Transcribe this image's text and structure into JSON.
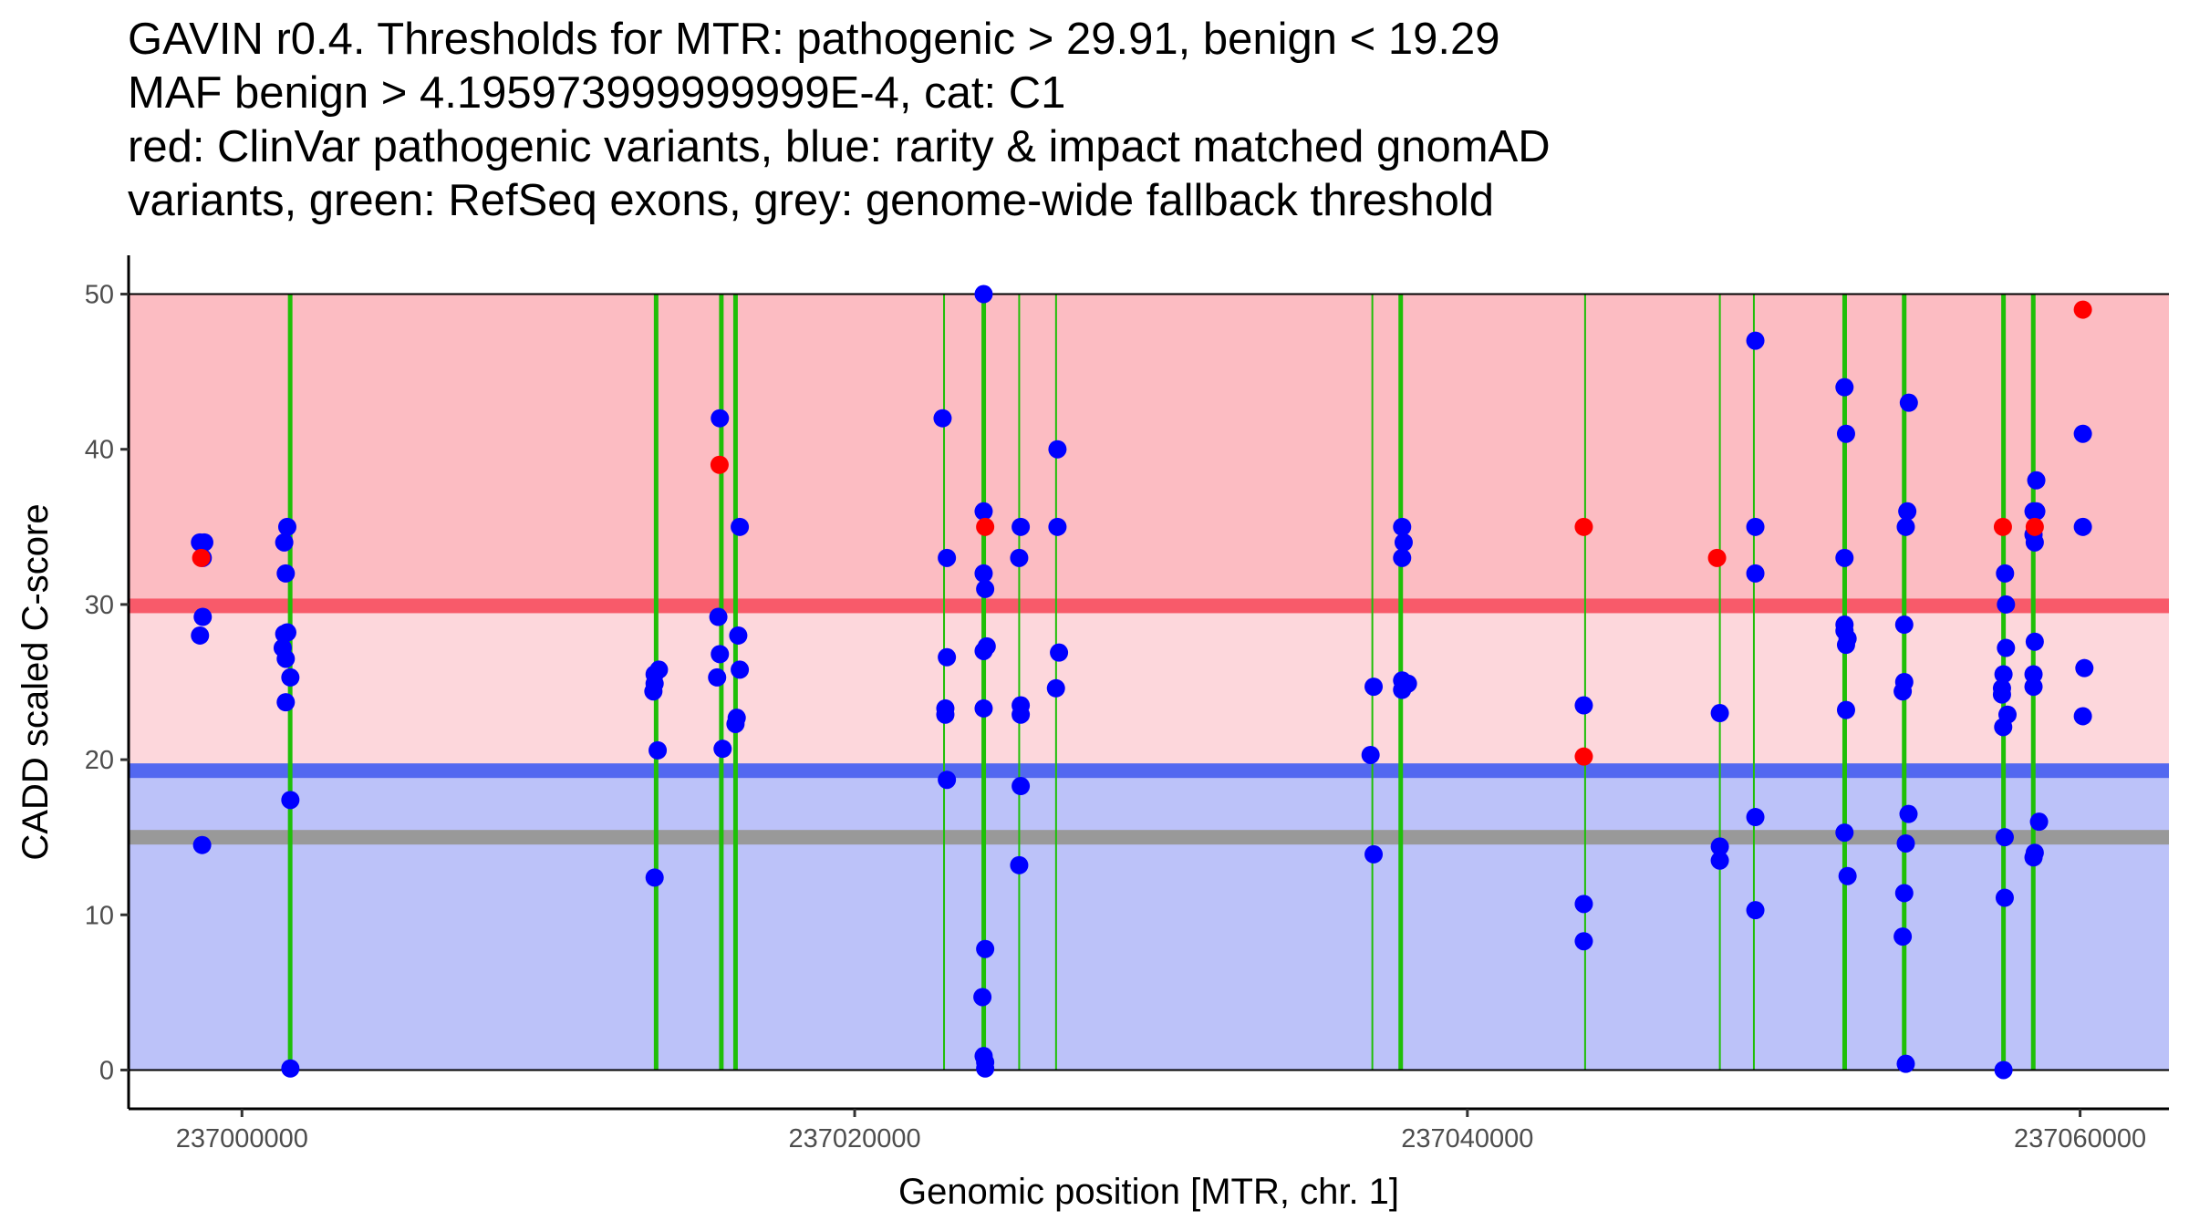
{
  "chart_data": {
    "type": "scatter",
    "title_lines": [
      "GAVIN r0.4. Thresholds for MTR: pathogenic > 29.91, benign < 19.29",
      "MAF benign > 4.195973999999999E-4, cat: C1",
      "red: ClinVar pathogenic variants, blue: rarity & impact matched gnomAD",
      "variants, green: RefSeq exons, grey: genome-wide fallback threshold"
    ],
    "xlabel": "Genomic position [MTR, chr. 1]",
    "ylabel": "CADD scaled C-score",
    "xlim": [
      236996300,
      237062900
    ],
    "ylim": [
      -2.5,
      52.5
    ],
    "x_ticks": [
      237000000,
      237020000,
      237040000,
      237060000
    ],
    "x_tick_labels": [
      "237000000",
      "237020000",
      "237040000",
      "237060000"
    ],
    "y_ticks": [
      0,
      10,
      20,
      30,
      40,
      50
    ],
    "y_tick_labels": [
      "0",
      "10",
      "20",
      "30",
      "40",
      "50"
    ],
    "grid": false,
    "bands": [
      {
        "name": "pathogenic-region",
        "y0": 29.91,
        "y1": 50,
        "color": "#fcbcc2"
      },
      {
        "name": "intermediate-region",
        "y0": 19.29,
        "y1": 29.91,
        "color": "#fdd7dc"
      },
      {
        "name": "benign-region",
        "y0": 0,
        "y1": 19.29,
        "color": "#bcc2f9"
      }
    ],
    "threshold_lines": [
      {
        "name": "pathogenic-threshold",
        "y": 29.91,
        "color": "#f85a6a"
      },
      {
        "name": "benign-threshold",
        "y": 19.29,
        "color": "#5368f0"
      },
      {
        "name": "genome-wide-fallback-threshold",
        "y": 15.0,
        "color": "#999999"
      }
    ],
    "exons": [
      {
        "x": 237001574,
        "thick": true
      },
      {
        "x": 237013519,
        "thick": true
      },
      {
        "x": 237015648,
        "thick": true
      },
      {
        "x": 237016111,
        "thick": true
      },
      {
        "x": 237022917,
        "thick": false
      },
      {
        "x": 237024213,
        "thick": true
      },
      {
        "x": 237025370,
        "thick": false
      },
      {
        "x": 237026574,
        "thick": false
      },
      {
        "x": 237036898,
        "thick": false
      },
      {
        "x": 237037824,
        "thick": true
      },
      {
        "x": 237043843,
        "thick": false
      },
      {
        "x": 237048241,
        "thick": false
      },
      {
        "x": 237049352,
        "thick": false
      },
      {
        "x": 237052315,
        "thick": true
      },
      {
        "x": 237054259,
        "thick": true
      },
      {
        "x": 237057500,
        "thick": true
      },
      {
        "x": 237058472,
        "thick": true
      }
    ],
    "exon_color": "#1fbf08",
    "series": [
      {
        "name": "gnomAD matched variants",
        "color": "#0000ff",
        "points": [
          [
            236998630,
            34
          ],
          [
            236998770,
            34
          ],
          [
            236998720,
            33
          ],
          [
            236998720,
            29.2
          ],
          [
            236998630,
            28
          ],
          [
            236998700,
            14.5
          ],
          [
            237001480,
            35
          ],
          [
            237001380,
            34
          ],
          [
            237001430,
            32
          ],
          [
            237001480,
            28.2
          ],
          [
            237001380,
            28.1
          ],
          [
            237001330,
            27.2
          ],
          [
            237001430,
            26.5
          ],
          [
            237001580,
            25.3
          ],
          [
            237001430,
            23.7
          ],
          [
            237001580,
            17.4
          ],
          [
            237001580,
            0.1
          ],
          [
            237013610,
            25.8
          ],
          [
            237013470,
            25.5
          ],
          [
            237013470,
            24.9
          ],
          [
            237013430,
            24.4
          ],
          [
            237013570,
            20.6
          ],
          [
            237013470,
            12.4
          ],
          [
            237015600,
            42
          ],
          [
            237015550,
            29.2
          ],
          [
            237015600,
            26.8
          ],
          [
            237015510,
            25.3
          ],
          [
            237015690,
            20.7
          ],
          [
            237016250,
            35
          ],
          [
            237016200,
            28
          ],
          [
            237016250,
            25.8
          ],
          [
            237016150,
            22.7
          ],
          [
            237016110,
            22.3
          ],
          [
            237022870,
            42
          ],
          [
            237023010,
            33
          ],
          [
            237023010,
            26.6
          ],
          [
            237022960,
            23.3
          ],
          [
            237022960,
            22.9
          ],
          [
            237023010,
            18.7
          ],
          [
            237024210,
            50
          ],
          [
            237024210,
            36
          ],
          [
            237024210,
            32
          ],
          [
            237024260,
            31
          ],
          [
            237024310,
            27.3
          ],
          [
            237024210,
            27
          ],
          [
            237024210,
            23.3
          ],
          [
            237024260,
            7.8
          ],
          [
            237024170,
            4.7
          ],
          [
            237024210,
            0.9
          ],
          [
            237024260,
            0.5
          ],
          [
            237024260,
            0.1
          ],
          [
            237025420,
            35
          ],
          [
            237025370,
            33
          ],
          [
            237025420,
            23.5
          ],
          [
            237025420,
            22.9
          ],
          [
            237025420,
            18.3
          ],
          [
            237025370,
            13.2
          ],
          [
            237026620,
            40
          ],
          [
            237026620,
            35
          ],
          [
            237026670,
            26.9
          ],
          [
            237026570,
            24.6
          ],
          [
            237036940,
            24.7
          ],
          [
            237036840,
            20.3
          ],
          [
            237036940,
            13.9
          ],
          [
            237037870,
            35
          ],
          [
            237037920,
            34
          ],
          [
            237037870,
            33
          ],
          [
            237037870,
            25.1
          ],
          [
            237038060,
            24.9
          ],
          [
            237037870,
            24.5
          ],
          [
            237043800,
            23.5
          ],
          [
            237043800,
            10.7
          ],
          [
            237043800,
            8.3
          ],
          [
            237048240,
            23
          ],
          [
            237048240,
            14.4
          ],
          [
            237048240,
            13.5
          ],
          [
            237049400,
            47
          ],
          [
            237049400,
            35
          ],
          [
            237049400,
            32
          ],
          [
            237049400,
            16.3
          ],
          [
            237049400,
            10.3
          ],
          [
            237052310,
            44
          ],
          [
            237052360,
            41
          ],
          [
            237052310,
            33
          ],
          [
            237052310,
            28.7
          ],
          [
            237052310,
            28.3
          ],
          [
            237052410,
            27.8
          ],
          [
            237052360,
            27.4
          ],
          [
            237052360,
            23.2
          ],
          [
            237052310,
            15.3
          ],
          [
            237052410,
            12.5
          ],
          [
            237054410,
            43
          ],
          [
            237054360,
            36
          ],
          [
            237054310,
            35
          ],
          [
            237054260,
            28.7
          ],
          [
            237054260,
            25
          ],
          [
            237054210,
            24.4
          ],
          [
            237054400,
            16.5
          ],
          [
            237054310,
            14.6
          ],
          [
            237054260,
            11.4
          ],
          [
            237054210,
            8.6
          ],
          [
            237054310,
            0.4
          ],
          [
            237057550,
            32
          ],
          [
            237057580,
            30
          ],
          [
            237057580,
            27.2
          ],
          [
            237057500,
            25.5
          ],
          [
            237057450,
            24.6
          ],
          [
            237057450,
            24.2
          ],
          [
            237057630,
            22.9
          ],
          [
            237057490,
            22.1
          ],
          [
            237057540,
            15
          ],
          [
            237057540,
            11.1
          ],
          [
            237057500,
            0
          ],
          [
            237058570,
            38
          ],
          [
            237058570,
            36
          ],
          [
            237058480,
            36
          ],
          [
            237058480,
            34.5
          ],
          [
            237058520,
            34
          ],
          [
            237058520,
            27.6
          ],
          [
            237058480,
            25.5
          ],
          [
            237058480,
            24.7
          ],
          [
            237058660,
            16
          ],
          [
            237058520,
            14
          ],
          [
            237058480,
            13.7
          ],
          [
            237060090,
            41
          ],
          [
            237060090,
            35
          ],
          [
            237060140,
            25.9
          ],
          [
            237060090,
            22.8
          ]
        ]
      },
      {
        "name": "ClinVar pathogenic variants",
        "color": "#ff0000",
        "points": [
          [
            236998670,
            33
          ],
          [
            237015590,
            39
          ],
          [
            237024260,
            35
          ],
          [
            237043800,
            35
          ],
          [
            237043800,
            20.2
          ],
          [
            237048150,
            33
          ],
          [
            237057480,
            35
          ],
          [
            237058520,
            35
          ],
          [
            237060090,
            49
          ]
        ]
      }
    ]
  }
}
